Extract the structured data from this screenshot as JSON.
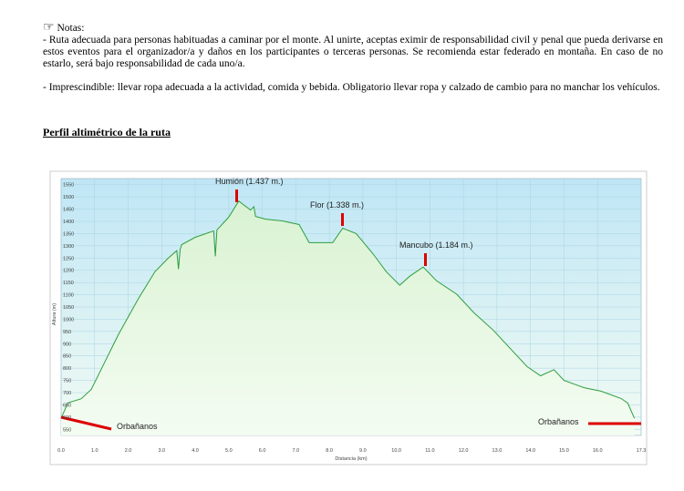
{
  "document": {
    "notes_title": "Notas:",
    "paragraphs": [
      "- Ruta adecuada para personas habituadas a caminar por el monte. Al unirte, aceptas eximir de responsabilidad civil y penal que pueda derivarse en estos eventos para el organizador/a y daños en los participantes o terceras personas. Se recomienda estar federado en montaña. En caso de no estarlo, será bajo responsabilidad de cada uno/a.",
      "- Imprescindible: llevar ropa adecuada a la actividad, comida y bebida. Obligatorio llevar ropa y calzado de cambio para no manchar los vehículos."
    ],
    "section_title": "Perfil altimétrico de la ruta"
  },
  "chart_data": {
    "type": "area",
    "x_label": "Distancia (km)",
    "y_label": "Altura (m)",
    "color": "#2e9e3e",
    "x": [
      0,
      0.2,
      0.6,
      0.9,
      1.3,
      1.7,
      2.3,
      2.8,
      3.2,
      3.45,
      3.5,
      3.55,
      3.6,
      4.0,
      4.55,
      4.6,
      4.65,
      5.0,
      5.3,
      5.65,
      5.75,
      5.8,
      6.1,
      6.6,
      7.1,
      7.4,
      8.1,
      8.4,
      8.8,
      9.3,
      9.7,
      10.1,
      10.4,
      10.8,
      11.2,
      11.8,
      12.3,
      12.9,
      13.4,
      13.9,
      14.3,
      14.7,
      15.0,
      15.6,
      16.1,
      16.7,
      16.9,
      17.1
    ],
    "values": [
      595,
      658,
      675,
      713,
      824,
      935,
      1083,
      1194,
      1250,
      1280,
      1205,
      1285,
      1305,
      1335,
      1361,
      1257,
      1365,
      1417,
      1483,
      1446,
      1460,
      1420,
      1409,
      1402,
      1387,
      1313,
      1313,
      1372,
      1350,
      1268,
      1194,
      1139,
      1176,
      1213,
      1157,
      1102,
      1028,
      954,
      880,
      806,
      769,
      794,
      750,
      720,
      706,
      676,
      657,
      595
    ],
    "xlim": [
      0,
      17.3
    ],
    "ylim": [
      525,
      1575
    ],
    "xticks": [
      {
        "value": 0,
        "label": "0.0"
      },
      {
        "value": 1,
        "label": "1.0"
      },
      {
        "value": 2,
        "label": "2.0"
      },
      {
        "value": 3,
        "label": "3.0"
      },
      {
        "value": 4,
        "label": "4.0"
      },
      {
        "value": 5,
        "label": "5.0"
      },
      {
        "value": 6,
        "label": "6.0"
      },
      {
        "value": 7,
        "label": "7.0"
      },
      {
        "value": 8,
        "label": "8.0"
      },
      {
        "value": 9,
        "label": "9.0"
      },
      {
        "value": 10,
        "label": "10.0"
      },
      {
        "value": 11,
        "label": "11.0"
      },
      {
        "value": 12,
        "label": "12.0"
      },
      {
        "value": 13,
        "label": "13.0"
      },
      {
        "value": 14,
        "label": "14.0"
      },
      {
        "value": 15,
        "label": "15.0"
      },
      {
        "value": 16,
        "label": "16.0"
      },
      {
        "value": 17.3,
        "label": "17.3"
      }
    ],
    "yticks": [
      550,
      600,
      650,
      700,
      750,
      800,
      850,
      900,
      950,
      1000,
      1050,
      1100,
      1150,
      1200,
      1250,
      1300,
      1350,
      1400,
      1450,
      1500,
      1550
    ],
    "grid": true,
    "annotations": [
      "Humión (1.437 m.)",
      "Flor (1.338 m.)",
      "Mancubo (1.184 m.)",
      "Orbañanos",
      "Orbañanos"
    ]
  }
}
